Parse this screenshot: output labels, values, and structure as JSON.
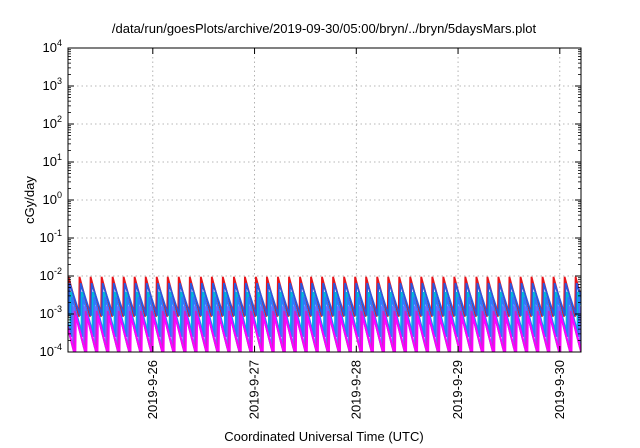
{
  "chart_data": {
    "type": "line",
    "title": "/data/run/goesPlots/archive/2019-09-30/05:00/bryn/../bryn/5daysMars.plot",
    "xlabel": "Coordinated Universal Time (UTC)",
    "ylabel": "cGy/day",
    "yscale": "log",
    "ylim": [
      0.0001,
      10000
    ],
    "y_ticks": [
      {
        "value": 0.0001,
        "base": "10",
        "exp": "-4"
      },
      {
        "value": 0.001,
        "base": "10",
        "exp": "-3"
      },
      {
        "value": 0.01,
        "base": "10",
        "exp": "-2"
      },
      {
        "value": 0.1,
        "base": "10",
        "exp": "-1"
      },
      {
        "value": 1,
        "base": "10",
        "exp": "0"
      },
      {
        "value": 10,
        "base": "10",
        "exp": "1"
      },
      {
        "value": 100,
        "base": "10",
        "exp": "2"
      },
      {
        "value": 1000,
        "base": "10",
        "exp": "3"
      },
      {
        "value": 10000,
        "base": "10",
        "exp": "4"
      }
    ],
    "xlim": [
      "2019-09-25T04:00",
      "2019-09-30T05:00"
    ],
    "x_ticks": [
      {
        "value": "2019-09-26T00:00",
        "label": "2019-9-26"
      },
      {
        "value": "2019-09-27T00:00",
        "label": "2019-9-27"
      },
      {
        "value": "2019-09-28T00:00",
        "label": "2019-9-28"
      },
      {
        "value": "2019-09-29T00:00",
        "label": "2019-9-29"
      },
      {
        "value": "2019-09-30T00:00",
        "label": "2019-9-30"
      }
    ],
    "grid": true,
    "sawtooth_period_hours": 2.6,
    "series": [
      {
        "color": "#e8141b",
        "peak": 0.0095,
        "trough": 0.00085,
        "phase_hours": 0.0
      },
      {
        "color": "#2a58e0",
        "peak": 0.0065,
        "trough": 0.0009,
        "phase_hours": 0.25
      },
      {
        "color": "#00b8d8",
        "peak": 0.0038,
        "trough": 0.0003,
        "phase_hours": 0.55
      },
      {
        "color": "#2e78ff",
        "peak": 0.0028,
        "trough": 0.00025,
        "phase_hours": 0.85
      },
      {
        "color": "#6c6cff",
        "peak": 0.0016,
        "trough": 0.00013,
        "phase_hours": 1.15
      },
      {
        "color": "#cc22cc",
        "peak": 0.0012,
        "trough": 9.5e-05,
        "phase_hours": 1.45
      },
      {
        "color": "#ff00ff",
        "peak": 0.0009,
        "trough": 8e-05,
        "phase_hours": 1.75
      }
    ]
  }
}
